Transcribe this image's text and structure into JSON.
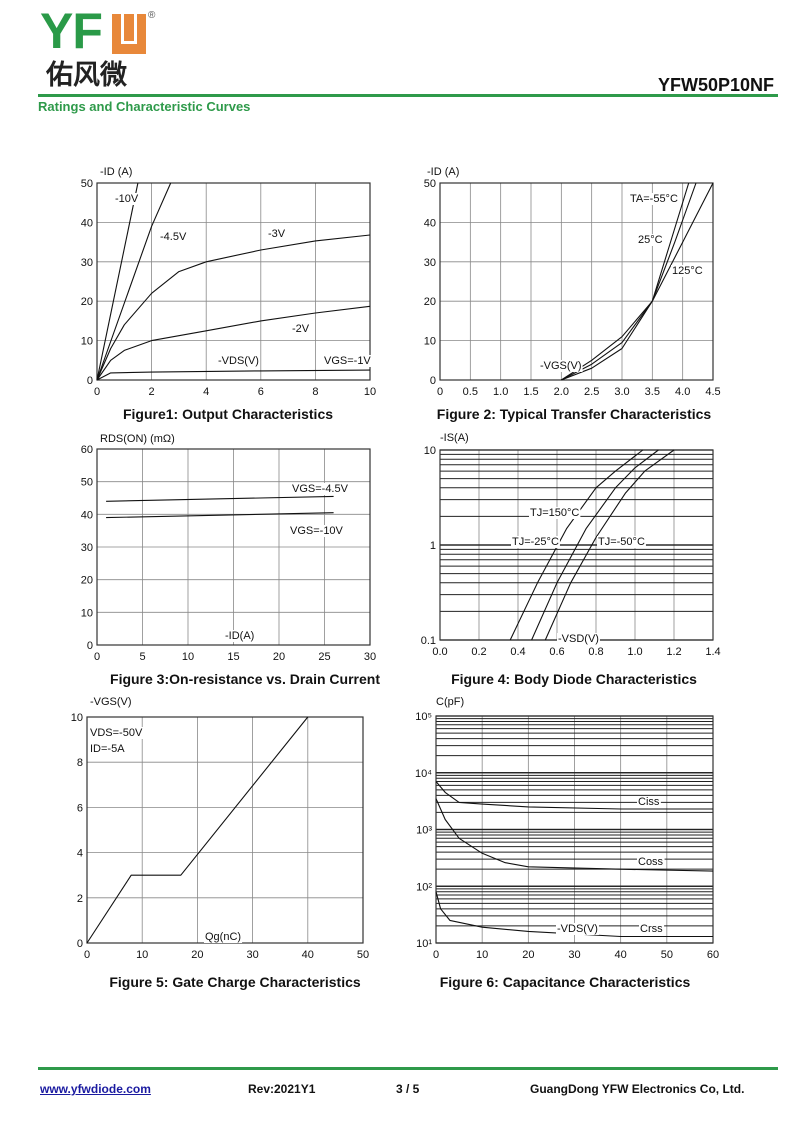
{
  "header": {
    "logo_text": "YFW",
    "logo_letters": "YF",
    "logo_registered": "®",
    "logo_chinese": "佑风微",
    "part_number": "YFW50P10NF",
    "section_title": "Ratings and Characteristic Curves"
  },
  "colors": {
    "brand_green": "#2e9a4a",
    "brand_orange": "#e8883a"
  },
  "footer": {
    "website": "www.yfwdiode.com",
    "revision": "Rev:2021Y1",
    "page": "3 / 5",
    "company": "GuangDong YFW Electronics Co, Ltd."
  },
  "chart_data": [
    {
      "type": "line",
      "title": "Figure1: Output Characteristics",
      "ylabel": "-ID (A)",
      "xlabel": "-VDS(V)",
      "xlim": [
        0,
        10
      ],
      "ylim": [
        0,
        50
      ],
      "yscale": "linear",
      "grid": true,
      "xticks": [
        0,
        2,
        4,
        6,
        8,
        10
      ],
      "yticks": [
        0,
        10,
        20,
        30,
        40,
        50
      ],
      "xtick_labels": [
        "0",
        "2",
        "4",
        "6",
        "8",
        "10"
      ],
      "ytick_labels": [
        "0",
        "10",
        "20",
        "30",
        "40",
        "50"
      ],
      "series": [
        {
          "name": "-10V",
          "points": [
            [
              0,
              0
            ],
            [
              1.5,
              50
            ]
          ]
        },
        {
          "name": "-4.5V",
          "points": [
            [
              0,
              0
            ],
            [
              2,
              39
            ],
            [
              2.7,
              50
            ]
          ]
        },
        {
          "name": "-3V",
          "points": [
            [
              0,
              0
            ],
            [
              0.5,
              8
            ],
            [
              1,
              14
            ],
            [
              2,
              22
            ],
            [
              3,
              27.5
            ],
            [
              4,
              30
            ],
            [
              6,
              33
            ],
            [
              8,
              35.3
            ],
            [
              10,
              36.8
            ]
          ]
        },
        {
          "name": "-2V",
          "points": [
            [
              0,
              0
            ],
            [
              0.5,
              5
            ],
            [
              1,
              7.5
            ],
            [
              2,
              10
            ],
            [
              4,
              12.5
            ],
            [
              6,
              15
            ],
            [
              8,
              17
            ],
            [
              10,
              18.7
            ]
          ]
        },
        {
          "name": "VGS=-1V",
          "points": [
            [
              0,
              0
            ],
            [
              0.5,
              1.8
            ],
            [
              2,
              2
            ],
            [
              6,
              2.3
            ],
            [
              10,
              2.5
            ]
          ]
        }
      ],
      "annotations": [
        "-10V",
        "-4.5V",
        "-3V",
        "-2V",
        "-VDS(V)",
        "VGS=-1V"
      ]
    },
    {
      "type": "line",
      "title": "Figure 2: Typical Transfer Characteristics",
      "ylabel": "-ID (A)",
      "xlabel": "-VGS(V)",
      "xlim": [
        0,
        4.5
      ],
      "ylim": [
        0,
        50
      ],
      "yscale": "linear",
      "grid": true,
      "xticks": [
        0,
        0.5,
        1,
        1.5,
        2,
        2.5,
        3,
        3.5,
        4,
        4.5
      ],
      "yticks": [
        0,
        10,
        20,
        30,
        40,
        50
      ],
      "xtick_labels": [
        "0",
        "0.5",
        "1.0",
        "1.5",
        "2.0",
        "2.5",
        "3.0",
        "3.5",
        "4.0",
        "4.5"
      ],
      "ytick_labels": [
        "0",
        "10",
        "20",
        "30",
        "40",
        "50"
      ],
      "series": [
        {
          "name": "TA=-55°C",
          "points": [
            [
              2.0,
              0
            ],
            [
              2.5,
              3
            ],
            [
              3,
              8
            ],
            [
              3.5,
              20
            ],
            [
              3.8,
              35
            ],
            [
              4.1,
              50
            ]
          ]
        },
        {
          "name": "25°C",
          "points": [
            [
              2.0,
              0
            ],
            [
              2.5,
              4
            ],
            [
              3,
              9.5
            ],
            [
              3.5,
              20
            ],
            [
              3.87,
              35
            ],
            [
              4.22,
              50
            ]
          ]
        },
        {
          "name": "125°C",
          "points": [
            [
              2.0,
              0
            ],
            [
              2.5,
              5
            ],
            [
              3,
              11
            ],
            [
              3.5,
              20
            ],
            [
              4.0,
              35
            ],
            [
              4.5,
              50
            ]
          ]
        }
      ],
      "annotations": [
        "TA=-55°C",
        "25°C",
        "125°C",
        "-VGS(V)"
      ]
    },
    {
      "type": "line",
      "title": "Figure 3:On-resistance vs. Drain Current",
      "ylabel": "RDS(ON) (mΩ)",
      "xlabel": "-ID(A)",
      "xlim": [
        0,
        30
      ],
      "ylim": [
        0,
        60
      ],
      "yscale": "linear",
      "grid": true,
      "xticks": [
        0,
        5,
        10,
        15,
        20,
        25,
        30
      ],
      "yticks": [
        0,
        10,
        20,
        30,
        40,
        50,
        60
      ],
      "xtick_labels": [
        "0",
        "5",
        "10",
        "15",
        "20",
        "25",
        "30"
      ],
      "ytick_labels": [
        "0",
        "10",
        "20",
        "30",
        "40",
        "50",
        "60"
      ],
      "series": [
        {
          "name": "VGS=-4.5V",
          "points": [
            [
              1,
              44
            ],
            [
              26,
              45.5
            ]
          ]
        },
        {
          "name": "VGS=-10V",
          "points": [
            [
              1,
              39
            ],
            [
              26,
              40.5
            ]
          ]
        }
      ],
      "annotations": [
        "VGS=-4.5V",
        "VGS=-10V",
        "-ID(A)"
      ]
    },
    {
      "type": "line",
      "title": "Figure 4: Body Diode Characteristics",
      "ylabel": "-IS(A)",
      "xlabel": "-VSD(V)",
      "xlim": [
        0,
        1.4
      ],
      "ylim": [
        0.1,
        10
      ],
      "yscale": "log",
      "grid": true,
      "xticks": [
        0,
        0.2,
        0.4,
        0.6,
        0.8,
        1.0,
        1.2,
        1.4
      ],
      "yticks": [
        0.1,
        1,
        10
      ],
      "xtick_labels": [
        "0.0",
        "0.2",
        "0.4",
        "0.6",
        "0.8",
        "1.0",
        "1.2",
        "1.4"
      ],
      "ytick_labels": [
        "0.1",
        "1",
        "10"
      ],
      "series": [
        {
          "name": "TJ=150°C",
          "points": [
            [
              0.36,
              0.1
            ],
            [
              0.5,
              0.4
            ],
            [
              0.65,
              1.5
            ],
            [
              0.8,
              4
            ],
            [
              0.9,
              6
            ],
            [
              1.04,
              10
            ]
          ]
        },
        {
          "name": "TJ=-25°C",
          "points": [
            [
              0.47,
              0.1
            ],
            [
              0.6,
              0.4
            ],
            [
              0.75,
              1.5
            ],
            [
              0.9,
              4
            ],
            [
              1.0,
              6.5
            ],
            [
              1.12,
              10
            ]
          ]
        },
        {
          "name": "TJ=-50°C",
          "points": [
            [
              0.54,
              0.1
            ],
            [
              0.67,
              0.4
            ],
            [
              0.8,
              1.2
            ],
            [
              0.95,
              3.5
            ],
            [
              1.05,
              6
            ],
            [
              1.2,
              10
            ]
          ]
        }
      ],
      "annotations": [
        "TJ=150°C",
        "TJ=-25°C",
        "TJ=-50°C",
        "-VSD(V)"
      ]
    },
    {
      "type": "line",
      "title": "Figure 5: Gate Charge Characteristics",
      "ylabel": "-VGS(V)",
      "xlabel": "Qg(nC)",
      "xlim": [
        0,
        50
      ],
      "ylim": [
        0,
        10
      ],
      "yscale": "linear",
      "grid": true,
      "xticks": [
        0,
        10,
        20,
        30,
        40,
        50
      ],
      "yticks": [
        0,
        2,
        4,
        6,
        8,
        10
      ],
      "xtick_labels": [
        "0",
        "10",
        "20",
        "30",
        "40",
        "50"
      ],
      "ytick_labels": [
        "0",
        "2",
        "4",
        "6",
        "8",
        "10"
      ],
      "series": [
        {
          "name": "VGS",
          "points": [
            [
              0,
              0
            ],
            [
              8,
              3
            ],
            [
              17,
              3
            ],
            [
              40,
              10
            ]
          ]
        }
      ],
      "annotations": [
        "VDS=-50V",
        "ID=-5A",
        "Qg(nC)"
      ]
    },
    {
      "type": "line",
      "title": "Figure 6: Capacitance Characteristics",
      "ylabel": "C(pF)",
      "xlabel": "-VDS(V)",
      "xlim": [
        0,
        60
      ],
      "ylim": [
        10,
        100000
      ],
      "yscale": "log",
      "grid": true,
      "xticks": [
        0,
        10,
        20,
        30,
        40,
        50,
        60
      ],
      "yticks": [
        10,
        100,
        1000,
        10000,
        100000
      ],
      "xtick_labels": [
        "0",
        "10",
        "20",
        "30",
        "40",
        "50",
        "60"
      ],
      "ytick_labels": [
        "10¹",
        "10²",
        "10³",
        "10⁴",
        "10⁵"
      ],
      "series": [
        {
          "name": "Ciss",
          "points": [
            [
              0,
              7000
            ],
            [
              2,
              4500
            ],
            [
              5,
              3000
            ],
            [
              10,
              2800
            ],
            [
              20,
              2500
            ],
            [
              40,
              2300
            ],
            [
              60,
              2300
            ]
          ]
        },
        {
          "name": "Coss",
          "points": [
            [
              0,
              3500
            ],
            [
              2,
              1500
            ],
            [
              5,
              700
            ],
            [
              10,
              380
            ],
            [
              15,
              260
            ],
            [
              20,
              220
            ],
            [
              40,
              200
            ],
            [
              60,
              185
            ]
          ]
        },
        {
          "name": "Crss",
          "points": [
            [
              0,
              80
            ],
            [
              1,
              40
            ],
            [
              3,
              25
            ],
            [
              10,
              19
            ],
            [
              20,
              16
            ],
            [
              40,
              13
            ],
            [
              60,
              13
            ]
          ]
        }
      ],
      "annotations": [
        "Ciss",
        "Coss",
        "-VDS(V)",
        "Crss"
      ]
    }
  ]
}
